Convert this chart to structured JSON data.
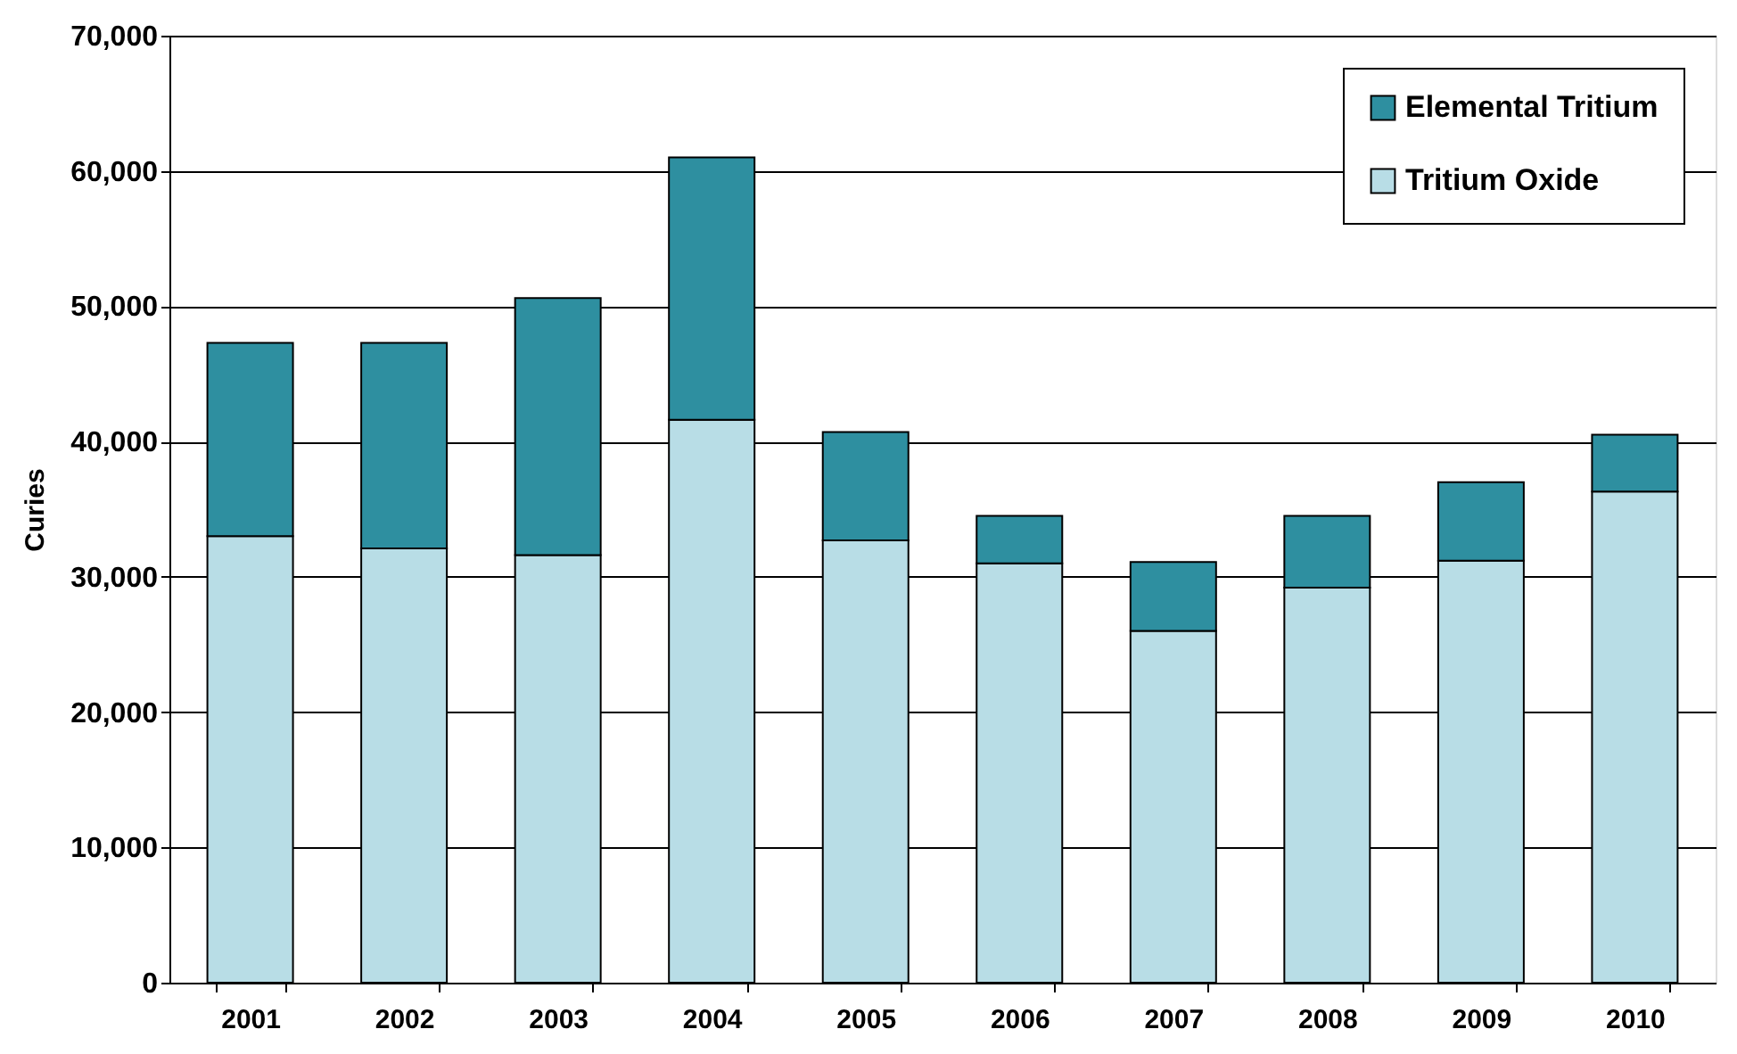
{
  "chart_data": {
    "type": "bar",
    "stacked": true,
    "ylabel": "Curies",
    "categories": [
      "2001",
      "2002",
      "2003",
      "2004",
      "2005",
      "2006",
      "2007",
      "2008",
      "2009",
      "2010"
    ],
    "series": [
      {
        "name": "Tritium Oxide",
        "color": "#b8dde6",
        "values": [
          33000,
          32100,
          31600,
          41600,
          32700,
          31000,
          26000,
          29200,
          31200,
          36300
        ]
      },
      {
        "name": "Elemental Tritium",
        "color": "#2e8fa0",
        "values": [
          14300,
          15200,
          19000,
          19400,
          8000,
          3500,
          5100,
          5300,
          5800,
          4200
        ]
      }
    ],
    "ylim": [
      0,
      70000
    ],
    "yticks": [
      0,
      {
        "value": 10000,
        "label": "10,000"
      },
      {
        "value": 20000,
        "label": "20,000"
      },
      {
        "value": 30000,
        "label": "30,000"
      },
      {
        "value": 40000,
        "label": "40,000"
      },
      {
        "value": 50000,
        "label": "50,000"
      },
      {
        "value": 60000,
        "label": "60,000"
      },
      {
        "value": 70000,
        "label": "70,000"
      }
    ],
    "grid": "y",
    "legend": "top right"
  }
}
